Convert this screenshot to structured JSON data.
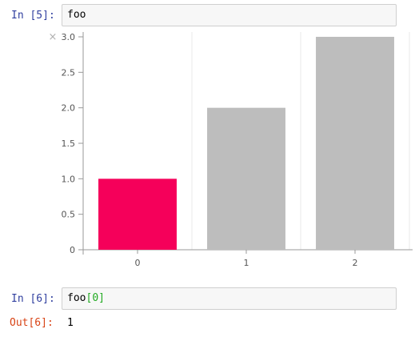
{
  "cells": [
    {
      "prompt": "In [5]:",
      "code": "foo"
    },
    {
      "prompt": "In [6]:",
      "code_name": "foo",
      "code_open": "[",
      "code_index": "0",
      "code_close": "]",
      "out_prompt": "Out[6]:",
      "out_value": "1"
    }
  ],
  "output_close_icon": "×",
  "colors": {
    "highlight_bar": "#f5005a",
    "default_bar": "#bdbdbd",
    "grid": "#e8e8e8",
    "axis": "#999999"
  },
  "chart_data": {
    "type": "bar",
    "categories": [
      "0",
      "1",
      "2"
    ],
    "values": [
      1,
      2,
      3
    ],
    "highlight_index": 0,
    "ylim": [
      0,
      3
    ],
    "yticks": [
      {
        "value": 0,
        "label": "0"
      },
      {
        "value": 0.5,
        "label": "0.5"
      },
      {
        "value": 1,
        "label": "1.0"
      },
      {
        "value": 1.5,
        "label": "1.5"
      },
      {
        "value": 2,
        "label": "2.0"
      },
      {
        "value": 2.5,
        "label": "2.5"
      },
      {
        "value": 3,
        "label": "3.0"
      }
    ],
    "grid": true,
    "title": "",
    "xlabel": "",
    "ylabel": ""
  }
}
